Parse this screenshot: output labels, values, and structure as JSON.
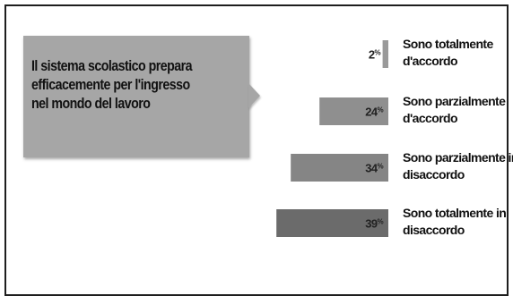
{
  "callout": {
    "text": "Il sistema scolastico prepara efficacemente per l'ingresso nel mondo del lavoro"
  },
  "chart_data": {
    "type": "bar",
    "orientation": "horizontal",
    "categories": [
      "Sono totalmente d'accordo",
      "Sono parzialmente d'accordo",
      "Sono parzialmente in disaccordo",
      "Sono totalmente in disaccordo"
    ],
    "category_lines": [
      [
        "Sono totalmente",
        "d'accordo"
      ],
      [
        "Sono parzialmente",
        "d'accordo"
      ],
      [
        "Sono parzialmente in",
        "disaccordo"
      ],
      [
        "Sono totalmente in",
        "disaccordo"
      ]
    ],
    "values": [
      2,
      24,
      34,
      39
    ],
    "value_labels": [
      "2",
      "24",
      "34",
      "39"
    ],
    "unit": "%",
    "colors": [
      "#9a9a9a",
      "#8f8f8f",
      "#858585",
      "#6b6b6b"
    ],
    "title": "",
    "xlabel": "",
    "ylabel": "",
    "grid": false,
    "legend": "none"
  }
}
